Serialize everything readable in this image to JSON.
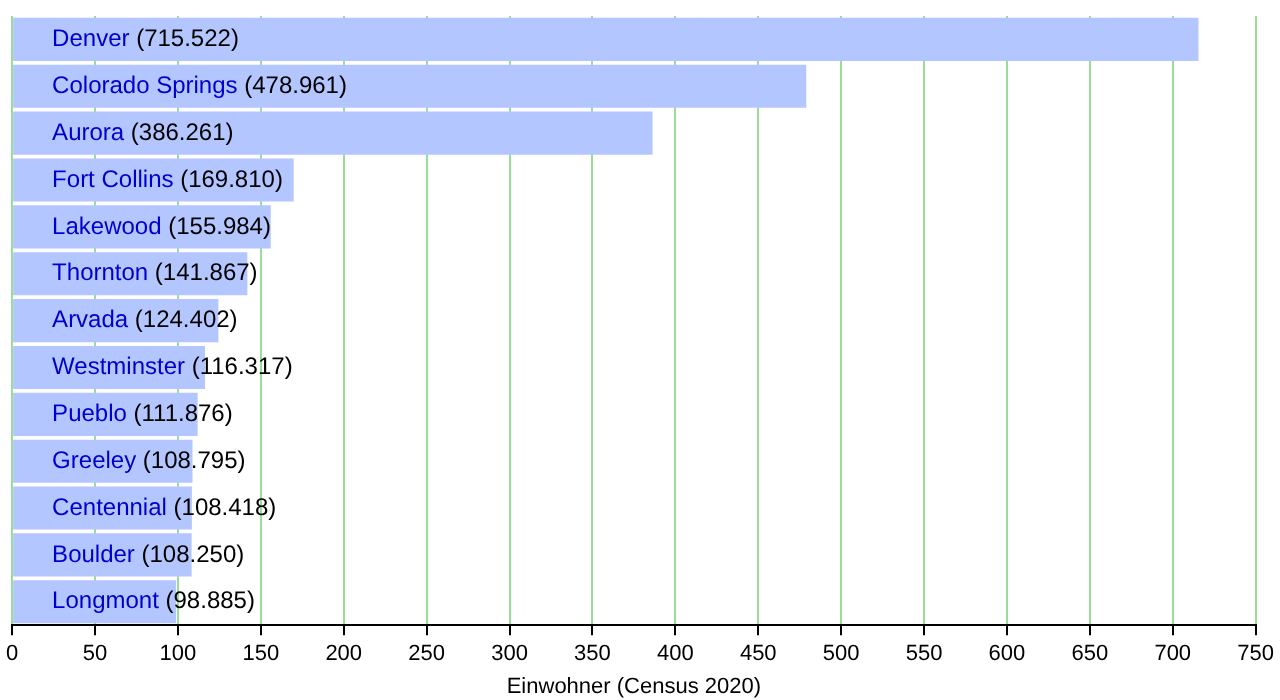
{
  "chart_data": {
    "type": "bar",
    "orientation": "horizontal",
    "xlabel": "Einwohner (Census 2020)",
    "categories": [
      "Denver",
      "Colorado Springs",
      "Aurora",
      "Fort Collins",
      "Lakewood",
      "Thornton",
      "Arvada",
      "Westminster",
      "Pueblo",
      "Greeley",
      "Centennial",
      "Boulder",
      "Longmont"
    ],
    "values": [
      715.522,
      478.961,
      386.261,
      169.81,
      155.984,
      141.867,
      124.402,
      116.317,
      111.876,
      108.795,
      108.418,
      108.25,
      98.885
    ],
    "value_labels": [
      "(715.522)",
      "(478.961)",
      "(386.261)",
      "(169.810)",
      "(155.984)",
      "(141.867)",
      "(124.402)",
      "(116.317)",
      "(111.876)",
      "(108.795)",
      "(108.418)",
      "(108.250)",
      "(98.885)"
    ],
    "color": "#b3c6ff",
    "xlim": [
      0,
      750
    ],
    "xticks": [
      0,
      50,
      100,
      150,
      200,
      250,
      300,
      350,
      400,
      450,
      500,
      550,
      600,
      650,
      700,
      750
    ],
    "grid": "x",
    "legend": false
  }
}
